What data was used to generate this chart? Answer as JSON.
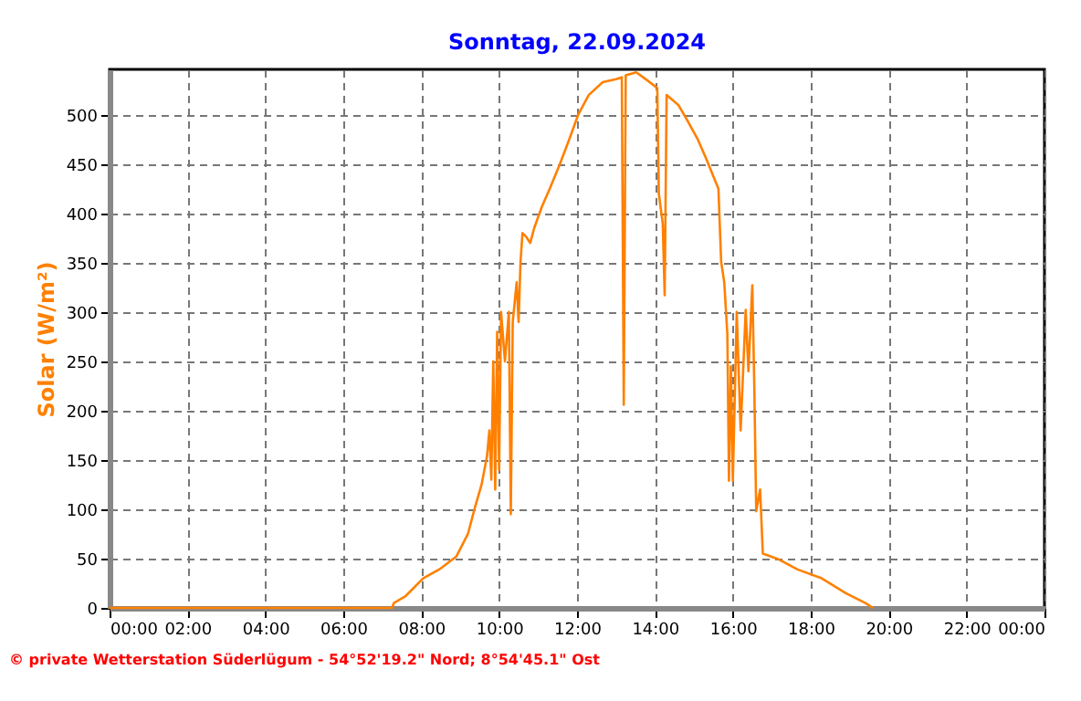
{
  "chart_data": {
    "type": "line",
    "title": "Sonntag, 22.09.2024",
    "ylabel": "Solar (W/m²)",
    "annotations": [
      "© private Wetterstation Süderlügum - 54°52'19.2\" Nord; 8°54'45.1\" Ost"
    ],
    "x": [
      0,
      7.25,
      7.3,
      7.6,
      8.05,
      8.5,
      8.9,
      9.2,
      9.38,
      9.55,
      9.69,
      9.75,
      9.8,
      9.85,
      9.9,
      9.95,
      10.0,
      10.05,
      10.15,
      10.25,
      10.3,
      10.35,
      10.45,
      10.5,
      10.55,
      10.6,
      10.7,
      10.8,
      10.9,
      11.1,
      11.3,
      11.56,
      11.8,
      12.03,
      12.3,
      12.66,
      13.0,
      13.15,
      13.2,
      13.25,
      13.52,
      13.8,
      14.06,
      14.1,
      14.2,
      14.25,
      14.3,
      14.6,
      14.85,
      15.1,
      15.31,
      15.63,
      15.7,
      15.78,
      15.86,
      15.9,
      15.95,
      16.0,
      16.1,
      16.2,
      16.33,
      16.4,
      16.5,
      16.55,
      16.6,
      16.7,
      16.77,
      17.19,
      17.66,
      18.28,
      18.9,
      19.4,
      19.6
    ],
    "series": [
      {
        "color": "#ff8000",
        "values": [
          0,
          0,
          5,
          12,
          30,
          40,
          52,
          75,
          102,
          125,
          154,
          180,
          130,
          250,
          120,
          280,
          140,
          300,
          250,
          300,
          95,
          290,
          330,
          290,
          351,
          380,
          376,
          370,
          385,
          407,
          425,
          450,
          475,
          500,
          520,
          533,
          536,
          538,
          206,
          540,
          543,
          535,
          527,
          420,
          390,
          317,
          520,
          510,
          493,
          475,
          456,
          425,
          351,
          330,
          277,
          129,
          245,
          129,
          300,
          180,
          302,
          240,
          327,
          227,
          98,
          120,
          55,
          49,
          39,
          30,
          15,
          5,
          0
        ]
      }
    ],
    "xlim": [
      0,
      24
    ],
    "xticks": [
      {
        "value": 0,
        "label": "00:00"
      },
      {
        "value": 2,
        "label": "02:00"
      },
      {
        "value": 4,
        "label": "04:00"
      },
      {
        "value": 6,
        "label": "06:00"
      },
      {
        "value": 8,
        "label": "08:00"
      },
      {
        "value": 10,
        "label": "10:00"
      },
      {
        "value": 12,
        "label": "12:00"
      },
      {
        "value": 14,
        "label": "14:00"
      },
      {
        "value": 16,
        "label": "16:00"
      },
      {
        "value": 18,
        "label": "18:00"
      },
      {
        "value": 20,
        "label": "20:00"
      },
      {
        "value": 22,
        "label": "22:00"
      },
      {
        "value": 24,
        "label": "00:00"
      }
    ],
    "ylim": [
      0,
      546
    ],
    "yticks": [
      0,
      50,
      100,
      150,
      200,
      250,
      300,
      350,
      400,
      450,
      500
    ],
    "grid": true,
    "marker": "none",
    "line_style": "solid"
  }
}
